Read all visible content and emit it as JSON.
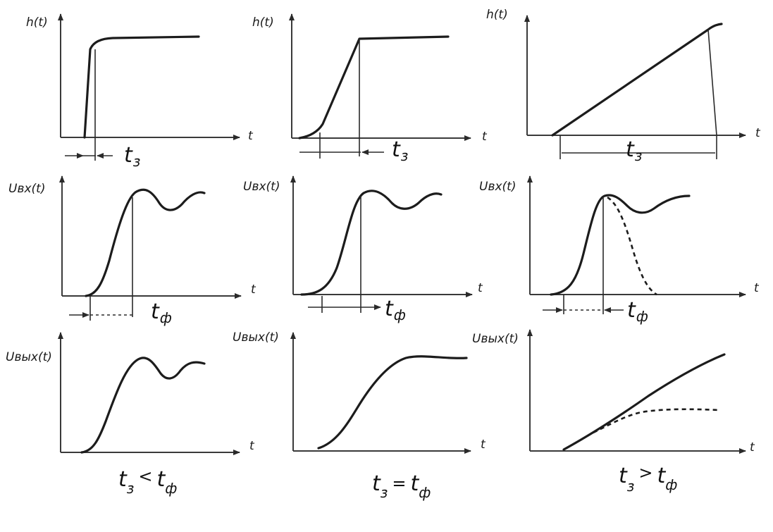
{
  "panels": {
    "r1c1": {
      "ylabel": "h(t)",
      "xlabel": "t",
      "dim": "t",
      "dim_sub": "з"
    },
    "r1c2": {
      "ylabel": "h(t)",
      "xlabel": "t",
      "dim": "t",
      "dim_sub": "з"
    },
    "r1c3": {
      "ylabel": "h(t)",
      "xlabel": "t",
      "dim": "t",
      "dim_sub": "з"
    },
    "r2c1": {
      "ylabel": "Uвх(t)",
      "xlabel": "t",
      "dim": "t",
      "dim_sub": "ф"
    },
    "r2c2": {
      "ylabel": "Uвх(t)",
      "xlabel": "t",
      "dim": "t",
      "dim_sub": "ф"
    },
    "r2c3": {
      "ylabel": "Uвх(t)",
      "xlabel": "t",
      "dim": "t",
      "dim_sub": "ф"
    },
    "r3c1": {
      "ylabel": "Uвых(t)",
      "xlabel": "t"
    },
    "r3c2": {
      "ylabel": "Uвых(t)",
      "xlabel": "t"
    },
    "r3c3": {
      "ylabel": "Uвых(t)",
      "xlabel": "t"
    }
  },
  "conditions": [
    {
      "t": "t",
      "left_sub": "з",
      "rel": "<",
      "right_sub": "ф"
    },
    {
      "t": "t",
      "left_sub": "з",
      "rel": "=",
      "right_sub": "ф"
    },
    {
      "t": "t",
      "left_sub": "з",
      "rel": ">",
      "right_sub": "ф"
    }
  ]
}
